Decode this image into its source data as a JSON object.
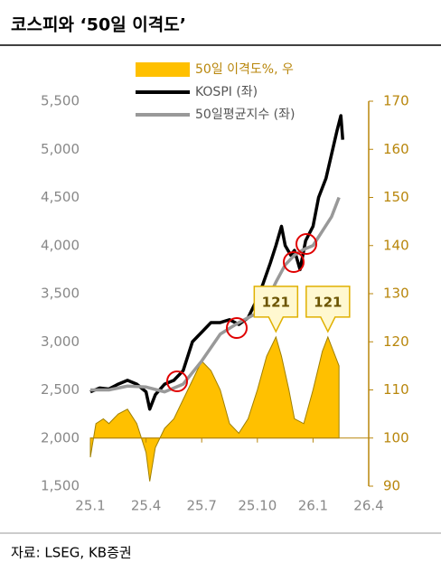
{
  "chart_data": {
    "type": "line",
    "title": "코스피와 ‘50일 이격도’",
    "source": "자료: LSEG, KB증권",
    "xlim": [
      0,
      15
    ],
    "xticks": [
      {
        "value": 0,
        "label": "25.1"
      },
      {
        "value": 3,
        "label": "25.4"
      },
      {
        "value": 6,
        "label": "25.7"
      },
      {
        "value": 9,
        "label": "25.10"
      },
      {
        "value": 12,
        "label": "26.1"
      },
      {
        "value": 15,
        "label": "26.4"
      }
    ],
    "ylim": [
      1500,
      5500
    ],
    "yticks": [
      {
        "value": 1500,
        "label": "1,500"
      },
      {
        "value": 2000,
        "label": "2,000"
      },
      {
        "value": 2500,
        "label": "2,500"
      },
      {
        "value": 3000,
        "label": "3,000"
      },
      {
        "value": 3500,
        "label": "3,500"
      },
      {
        "value": 4000,
        "label": "4,000"
      },
      {
        "value": 4500,
        "label": "4,500"
      },
      {
        "value": 5000,
        "label": "5,000"
      },
      {
        "value": 5500,
        "label": "5,500"
      }
    ],
    "y2lim": [
      90,
      170
    ],
    "y2ticks": [
      90,
      100,
      110,
      120,
      130,
      140,
      150,
      160,
      170
    ],
    "series": [
      {
        "name": "50일 이격도%, 우",
        "type": "area",
        "axis": "y2",
        "color": "#ffc000",
        "x": [
          0,
          0.3,
          0.7,
          1,
          1.5,
          2,
          2.5,
          3,
          3.2,
          3.5,
          4,
          4.5,
          5,
          5.5,
          6,
          6.5,
          7,
          7.5,
          8,
          8.5,
          9,
          9.5,
          10,
          10.3,
          10.7,
          11,
          11.5,
          12,
          12.5,
          12.8,
          13,
          13.4
        ],
        "values": [
          96,
          103,
          104,
          103,
          105,
          106,
          103,
          97,
          91,
          98,
          102,
          104,
          108,
          112,
          116,
          114,
          110,
          103,
          101,
          104,
          110,
          117,
          121,
          117,
          110,
          104,
          103,
          110,
          118,
          121,
          119,
          115
        ]
      },
      {
        "name": "KOSPI (좌)",
        "type": "line",
        "color": "#000000",
        "x": [
          0,
          0.5,
          1,
          1.5,
          2,
          2.5,
          3,
          3.2,
          3.5,
          4,
          4.5,
          5,
          5.5,
          6,
          6.5,
          7,
          7.5,
          8,
          8.5,
          9,
          9.3,
          9.7,
          10,
          10.3,
          10.5,
          10.8,
          11,
          11.3,
          11.6,
          12,
          12.3,
          12.7,
          13,
          13.3,
          13.5,
          13.6
        ],
        "values": [
          2480,
          2520,
          2510,
          2560,
          2600,
          2560,
          2480,
          2300,
          2450,
          2560,
          2600,
          2700,
          3000,
          3100,
          3200,
          3200,
          3230,
          3180,
          3250,
          3450,
          3600,
          3820,
          4000,
          4200,
          4000,
          3900,
          3950,
          3750,
          4050,
          4200,
          4500,
          4700,
          4950,
          5200,
          5350,
          5100
        ]
      },
      {
        "name": "50일평균지수 (좌)",
        "type": "line",
        "color": "#999999",
        "x": [
          0,
          1,
          2,
          3,
          4,
          5,
          6,
          7,
          8,
          9,
          9.5,
          10,
          10.5,
          11,
          11.5,
          12,
          12.5,
          13,
          13.4
        ],
        "values": [
          2500,
          2500,
          2540,
          2530,
          2480,
          2560,
          2800,
          3080,
          3200,
          3300,
          3420,
          3620,
          3800,
          3900,
          3960,
          4000,
          4150,
          4300,
          4500
        ]
      }
    ],
    "annotations": [
      {
        "text": "121",
        "x": 10,
        "y2": 121
      },
      {
        "text": "121",
        "x": 12.8,
        "y2": 121
      }
    ]
  }
}
